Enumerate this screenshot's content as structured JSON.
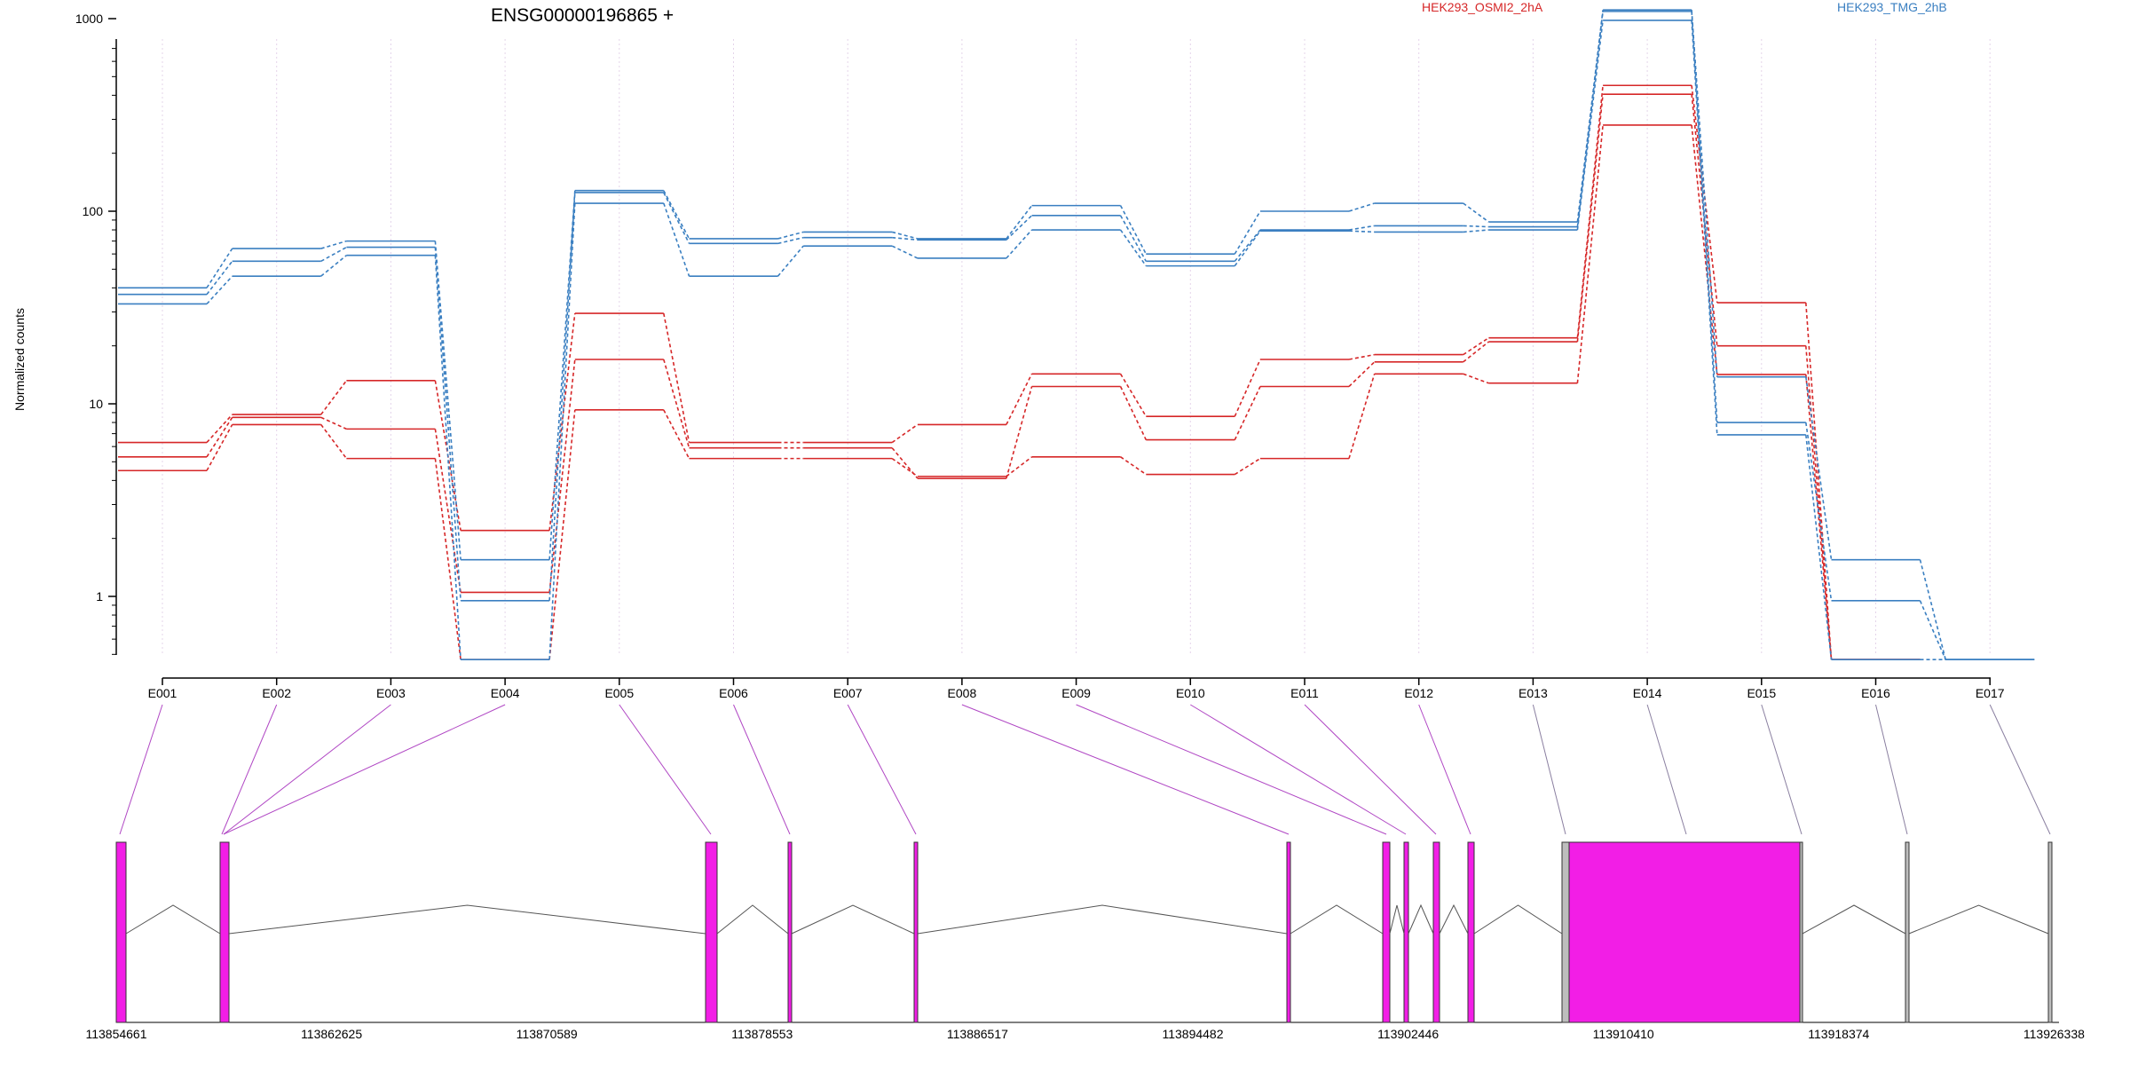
{
  "chart_data": {
    "type": "line",
    "title": "ENSG00000196865 +",
    "ylabel": "Normalized counts",
    "y_scale": "log",
    "y_ticks": [
      "1000",
      "100",
      "10",
      "1"
    ],
    "y_tick_values": [
      1000,
      100,
      10,
      1
    ],
    "ylim": [
      0.45,
      1600
    ],
    "categories": [
      "E001",
      "E002",
      "E003",
      "E004",
      "E005",
      "E006",
      "E007",
      "E008",
      "E009",
      "E010",
      "E011",
      "E012",
      "E013",
      "E014",
      "E015",
      "E016",
      "E017"
    ],
    "legend": [
      {
        "name": "HEK293_OSMI2_2hA",
        "color": "#d62728"
      },
      {
        "name": "HEK293_TMG_2hB",
        "color": "#3a7fc1"
      }
    ],
    "series": [
      {
        "group": "HEK293_OSMI2_2hA",
        "color": "#d62728",
        "values": [
          6.3,
          8.8,
          13.2,
          2.2,
          29.5,
          6.3,
          6.3,
          7.8,
          14.3,
          8.6,
          17.0,
          18.0,
          22.0,
          450,
          33.5,
          0.47,
          null
        ]
      },
      {
        "group": "HEK293_OSMI2_2hA",
        "color": "#d62728",
        "values": [
          5.3,
          8.5,
          7.4,
          1.05,
          17.0,
          5.9,
          5.9,
          4.1,
          12.3,
          6.5,
          12.3,
          16.5,
          21.0,
          405,
          20.0,
          0.47,
          null
        ]
      },
      {
        "group": "HEK293_OSMI2_2hA",
        "color": "#d62728",
        "values": [
          4.5,
          7.8,
          5.2,
          0.47,
          9.3,
          5.2,
          5.2,
          4.2,
          5.3,
          4.3,
          5.2,
          14.3,
          12.8,
          280,
          14.2,
          0.47,
          null
        ]
      },
      {
        "group": "HEK293_TMG_2hB",
        "color": "#3a7fc1",
        "values": [
          40,
          64,
          70,
          1.55,
          128,
          72,
          78,
          72,
          107,
          60,
          100,
          110,
          88,
          1110,
          13.8,
          1.55,
          0.47
        ]
      },
      {
        "group": "HEK293_TMG_2hB",
        "color": "#3a7fc1",
        "values": [
          37,
          55,
          65,
          0.95,
          125,
          68,
          73,
          71,
          95,
          55,
          80,
          84,
          83,
          1090,
          8.0,
          0.95,
          0.47
        ]
      },
      {
        "group": "HEK293_TMG_2hB",
        "color": "#3a7fc1",
        "values": [
          33,
          46,
          59,
          0.47,
          110,
          46,
          66,
          57,
          80,
          52,
          79,
          78,
          80,
          980,
          6.9,
          0.47,
          0.47
        ]
      }
    ],
    "grid": "vertical dotted per exon",
    "gene_model": {
      "coordinate_labels": [
        "113854661",
        "113862625",
        "113870589",
        "113878553",
        "113886517",
        "113894482",
        "113902446",
        "113910410",
        "113918374",
        "113926338"
      ],
      "exon_color": "#f21ee6",
      "untranslated_color": "#bdbdbd"
    }
  }
}
